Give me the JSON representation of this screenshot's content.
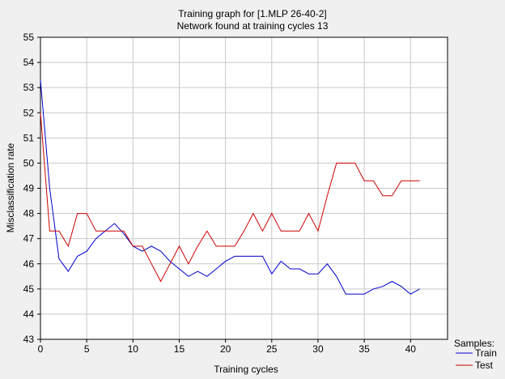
{
  "chart_data": {
    "type": "line",
    "title": "Training graph for [1.MLP 26-40-2]",
    "subtitle": "Network found at training cycles 13",
    "xlabel": "Training cycles",
    "ylabel": "Misclassification rate",
    "xlim": [
      0,
      44
    ],
    "ylim": [
      43,
      55
    ],
    "xticks": [
      0,
      5,
      10,
      15,
      20,
      25,
      30,
      35,
      40
    ],
    "yticks": [
      43,
      44,
      45,
      46,
      47,
      48,
      49,
      50,
      51,
      52,
      53,
      54,
      55
    ],
    "grid": true,
    "legend": {
      "title": "Samples:",
      "position": "bottom-right"
    },
    "x": [
      0,
      1,
      2,
      3,
      4,
      5,
      6,
      7,
      8,
      9,
      10,
      11,
      12,
      13,
      14,
      15,
      16,
      17,
      18,
      19,
      20,
      21,
      22,
      23,
      24,
      25,
      26,
      27,
      28,
      29,
      30,
      31,
      32,
      33,
      34,
      35,
      36,
      37,
      38,
      39,
      40,
      41
    ],
    "series": [
      {
        "name": "Train",
        "color": "#0000cc",
        "values": [
          53.3,
          49.0,
          46.2,
          45.7,
          46.3,
          46.5,
          47.0,
          47.3,
          47.6,
          47.2,
          46.7,
          46.5,
          46.7,
          46.5,
          46.1,
          45.8,
          45.5,
          45.7,
          45.5,
          45.8,
          46.1,
          46.3,
          46.3,
          46.3,
          46.3,
          45.6,
          46.1,
          45.8,
          45.8,
          45.6,
          45.6,
          46.0,
          45.5,
          44.8,
          44.8,
          44.8,
          45.0,
          45.1,
          45.3,
          45.1,
          44.8,
          45.0
        ]
      },
      {
        "name": "Test",
        "color": "#cc0000",
        "values": [
          52.0,
          47.3,
          47.3,
          46.7,
          48.0,
          48.0,
          47.3,
          47.3,
          47.3,
          47.3,
          46.7,
          46.7,
          46.0,
          45.3,
          46.0,
          46.7,
          46.0,
          46.7,
          47.3,
          46.7,
          46.7,
          46.7,
          47.3,
          48.0,
          47.3,
          48.0,
          47.3,
          47.3,
          47.3,
          48.0,
          47.3,
          48.7,
          50.0,
          50.0,
          50.0,
          49.3,
          49.3,
          48.7,
          48.7,
          49.3,
          49.3,
          49.3
        ]
      }
    ]
  }
}
